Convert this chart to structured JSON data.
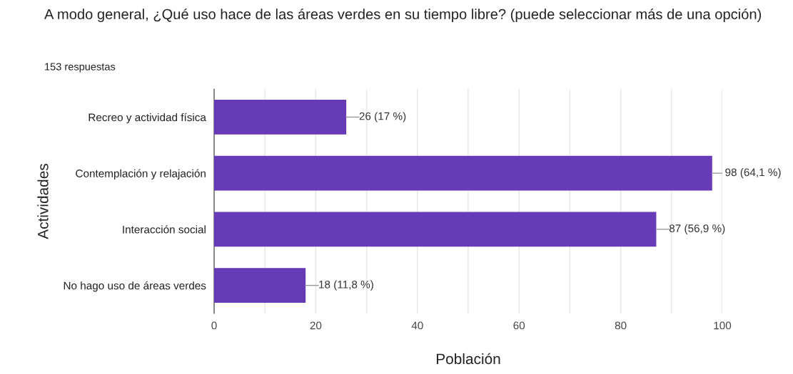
{
  "chart_data": {
    "type": "bar",
    "orientation": "horizontal",
    "title": "A modo general, ¿Qué uso hace de las áreas verdes en su tiempo libre? (puede seleccionar más de una opción)",
    "subtitle": "153 respuestas",
    "xlabel": "Población",
    "ylabel": "Actividades",
    "categories": [
      "Recreo y actividad física",
      "Contemplación y relajación",
      "Interacción social",
      "No hago uso de áreas verdes"
    ],
    "values": [
      26,
      98,
      87,
      18
    ],
    "value_labels": [
      "26 (17 %)",
      "98 (64,1 %)",
      "87 (56,9 %)",
      "18 (11,8 %)"
    ],
    "color": "#673ab7",
    "xlim": [
      0,
      100
    ],
    "xticks": [
      0,
      {
        "value": 10,
        "label": null
      },
      20,
      {
        "value": 30,
        "label": null
      },
      40,
      {
        "value": 50,
        "label": null
      },
      60,
      {
        "value": 70,
        "label": null
      },
      80,
      {
        "value": 90,
        "label": null
      },
      100
    ],
    "grid": "x",
    "legend": false
  }
}
